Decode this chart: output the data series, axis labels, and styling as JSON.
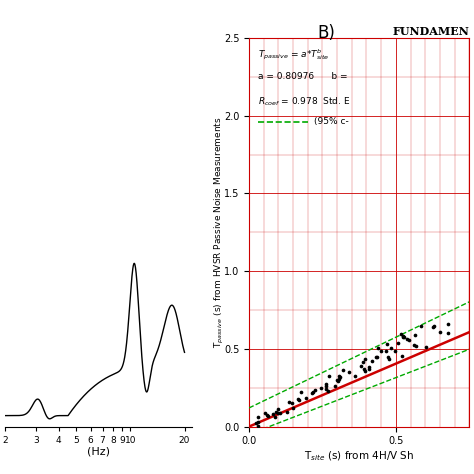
{
  "left_panel": {
    "xlabel": "(Hz)",
    "curve_color": "#000000",
    "xlim_log": [
      2,
      20
    ],
    "curve_ymin": 0.0,
    "curve_ymax": 1.0
  },
  "right_panel": {
    "title": "FUNDAMEN",
    "xlabel": "T$_{site}$ (s) from 4H/V Sh",
    "ylabel": "T$_{passive}$ (s) from HVSR Passive Noise Measurements",
    "xlim": [
      0,
      0.75
    ],
    "ylim": [
      0,
      2.5
    ],
    "xticks": [
      0,
      0.5
    ],
    "yticks": [
      0,
      0.5,
      1.0,
      1.5,
      2.0,
      2.5
    ],
    "grid_color": "#cc0000",
    "fit_line_color": "#cc0000",
    "ci_line_color": "#00aa00",
    "data_color": "#000000",
    "panel_label": "B)"
  }
}
